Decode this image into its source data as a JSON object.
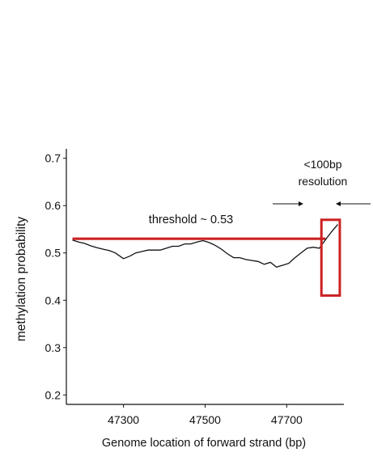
{
  "chart_data": {
    "type": "line",
    "title": "",
    "xlabel": "Genome location of forward strand (bp)",
    "ylabel": "methylation probability",
    "xlim": [
      47160,
      47840
    ],
    "ylim": [
      0.18,
      0.72
    ],
    "x_ticks": [
      {
        "value": 47300,
        "label": "47300"
      },
      {
        "value": 47500,
        "label": "47500"
      },
      {
        "value": 47700,
        "label": "47700"
      }
    ],
    "y_ticks": [
      {
        "value": 0.2,
        "label": "0.2"
      },
      {
        "value": 0.3,
        "label": "0.3"
      },
      {
        "value": 0.4,
        "label": "0.4"
      },
      {
        "value": 0.5,
        "label": "0.5"
      },
      {
        "value": 0.6,
        "label": "0.6"
      },
      {
        "value": 0.7,
        "label": "0.7"
      }
    ],
    "grid": false,
    "series": [
      {
        "name": "",
        "color": "#111111",
        "x": [
          47175,
          47190,
          47205,
          47220,
          47235,
          47250,
          47265,
          47280,
          47290,
          47300,
          47315,
          47330,
          47345,
          47360,
          47375,
          47390,
          47405,
          47420,
          47435,
          47450,
          47465,
          47480,
          47495,
          47510,
          47525,
          47540,
          47555,
          47570,
          47585,
          47600,
          47615,
          47630,
          47645,
          47660,
          47675,
          47690,
          47705,
          47720,
          47735,
          47750,
          47765,
          47780,
          47795,
          47810,
          47825
        ],
        "y": [
          0.527,
          0.523,
          0.52,
          0.515,
          0.511,
          0.508,
          0.505,
          0.5,
          0.494,
          0.488,
          0.493,
          0.5,
          0.503,
          0.506,
          0.506,
          0.506,
          0.51,
          0.514,
          0.514,
          0.519,
          0.519,
          0.523,
          0.526,
          0.522,
          0.516,
          0.508,
          0.498,
          0.49,
          0.49,
          0.486,
          0.484,
          0.482,
          0.476,
          0.48,
          0.47,
          0.474,
          0.478,
          0.49,
          0.5,
          0.51,
          0.512,
          0.51,
          0.528,
          0.545,
          0.56
        ]
      }
    ],
    "annotations": {
      "threshold": {
        "label": "threshold ~ 0.53",
        "value": 0.53,
        "x_start": 47175,
        "x_end": 47795,
        "color": "#cc2222"
      },
      "resolution_box": {
        "label_line1": "<100bp",
        "label_line2": "resolution",
        "x_start": 47785,
        "x_end": 47830,
        "y_start": 0.41,
        "y_end": 0.57,
        "color": "#cc2222"
      }
    }
  }
}
